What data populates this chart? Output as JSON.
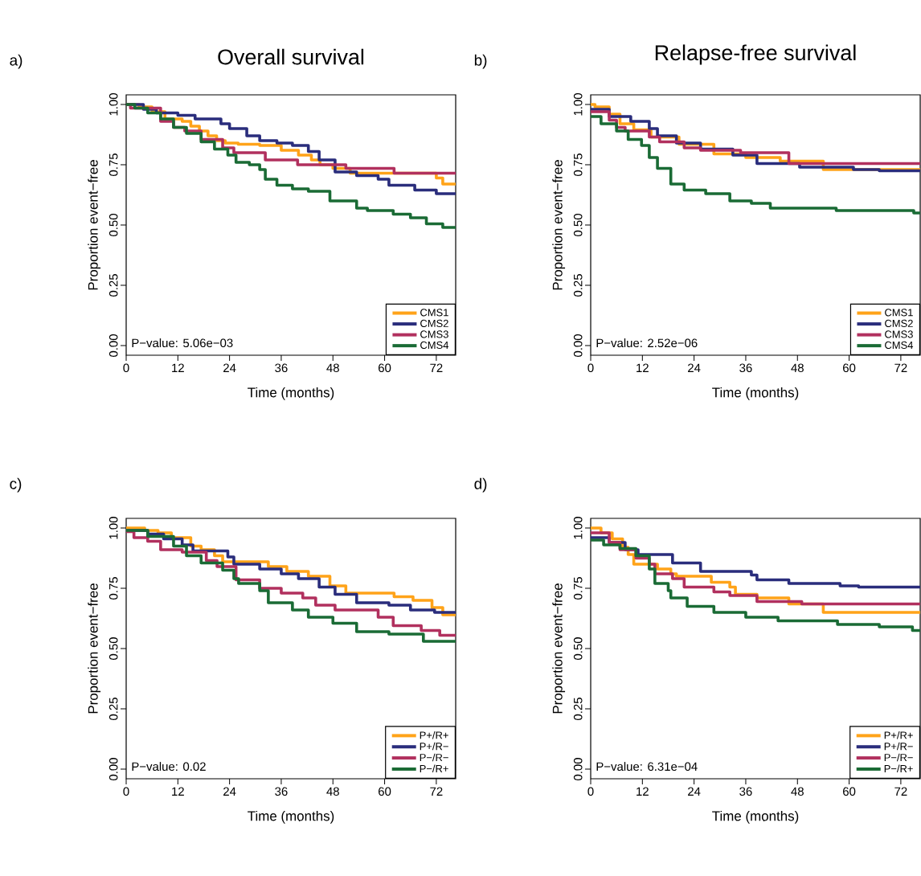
{
  "chart_data": [
    {
      "type": "step",
      "title": "Overall survival",
      "xlabel": "Time (months)",
      "ylabel": "Proportion event−free",
      "annotations": [
        "a)",
        "P−value: 5.06e−03"
      ],
      "xlim": [
        0,
        76.5
      ],
      "ylim": [
        -0.04,
        1.04
      ],
      "xticks": [
        0,
        12,
        24,
        36,
        48,
        60,
        72
      ],
      "yticks": [
        {
          "value": 0,
          "label": "0.00"
        },
        {
          "value": 0.25,
          "label": "0.25"
        },
        {
          "value": 0.5,
          "label": "0.50"
        },
        {
          "value": 0.75,
          "label": "0.75"
        },
        {
          "value": 1,
          "label": "1.00"
        }
      ],
      "legend": "bottom right",
      "series": [
        {
          "name": "CMS1",
          "color": "#ffa319",
          "x": [
            0,
            3,
            6,
            9,
            13,
            15,
            17,
            19,
            21,
            23,
            26,
            31,
            36,
            40,
            43,
            45,
            48,
            52,
            72,
            73.5,
            76.5
          ],
          "values": [
            1,
            0.99,
            0.97,
            0.94,
            0.93,
            0.91,
            0.89,
            0.87,
            0.85,
            0.84,
            0.835,
            0.83,
            0.81,
            0.79,
            0.77,
            0.75,
            0.735,
            0.715,
            0.695,
            0.67,
            0.67
          ]
        },
        {
          "name": "CMS2",
          "color": "#2a2d7c",
          "x": [
            0,
            4,
            7,
            12,
            16,
            22,
            24,
            28,
            31,
            35,
            38.6,
            42.3,
            44.8,
            48.5,
            53.5,
            58.5,
            61,
            67,
            72,
            76.5
          ],
          "values": [
            1,
            0.98,
            0.965,
            0.955,
            0.94,
            0.92,
            0.9,
            0.87,
            0.85,
            0.84,
            0.83,
            0.805,
            0.77,
            0.72,
            0.705,
            0.69,
            0.665,
            0.645,
            0.63,
            0.63
          ]
        },
        {
          "name": "CMS3",
          "color": "#b1305e",
          "x": [
            0,
            1,
            8,
            11,
            13.6,
            17.4,
            22.4,
            25,
            32.3,
            39.8,
            51,
            62.2,
            76.5
          ],
          "values": [
            1,
            0.985,
            0.93,
            0.905,
            0.89,
            0.855,
            0.82,
            0.8,
            0.77,
            0.75,
            0.735,
            0.715,
            0.715
          ]
        },
        {
          "name": "CMS4",
          "color": "#1a6b35",
          "x": [
            0,
            2,
            5,
            8,
            11,
            14,
            17.4,
            20.5,
            23.6,
            25.5,
            28.6,
            31,
            32.3,
            35,
            38.6,
            42.3,
            47.3,
            53.5,
            56,
            62,
            66,
            69.7,
            73.5,
            76.5
          ],
          "values": [
            1,
            0.985,
            0.965,
            0.94,
            0.905,
            0.88,
            0.845,
            0.815,
            0.79,
            0.76,
            0.75,
            0.73,
            0.69,
            0.665,
            0.65,
            0.64,
            0.6,
            0.57,
            0.56,
            0.545,
            0.53,
            0.505,
            0.49,
            0.49
          ]
        }
      ]
    },
    {
      "type": "step",
      "title": "Relapse-free survival",
      "xlabel": "Time (months)",
      "ylabel": "Proportion event−free",
      "annotations": [
        "b)",
        "P−value: 2.52e−06"
      ],
      "xlim": [
        0,
        76.5
      ],
      "ylim": [
        -0.04,
        1.04
      ],
      "xticks": [
        0,
        12,
        24,
        36,
        48,
        60,
        72
      ],
      "yticks": [
        {
          "value": 0,
          "label": "0.00"
        },
        {
          "value": 0.25,
          "label": "0.25"
        },
        {
          "value": 0.5,
          "label": "0.50"
        },
        {
          "value": 0.75,
          "label": "0.75"
        },
        {
          "value": 1,
          "label": "1.00"
        }
      ],
      "legend": "bottom right",
      "series": [
        {
          "name": "CMS1",
          "color": "#ffa319",
          "x": [
            0,
            1,
            4.3,
            6.8,
            10,
            14,
            20.5,
            28.6,
            36,
            44,
            54,
            76.5
          ],
          "values": [
            1,
            0.99,
            0.96,
            0.92,
            0.895,
            0.865,
            0.835,
            0.795,
            0.78,
            0.765,
            0.73,
            0.73
          ]
        },
        {
          "name": "CMS2",
          "color": "#2a2d7c",
          "x": [
            0,
            4.3,
            9.3,
            13.6,
            15.5,
            19.9,
            25.5,
            33,
            38.6,
            48.5,
            61,
            67,
            76.5
          ],
          "values": [
            0.98,
            0.95,
            0.93,
            0.9,
            0.87,
            0.84,
            0.815,
            0.79,
            0.755,
            0.74,
            0.73,
            0.725,
            0.725
          ]
        },
        {
          "name": "CMS3",
          "color": "#b1305e",
          "x": [
            0,
            4.3,
            6,
            8,
            13.6,
            16,
            21.7,
            25.5,
            34.8,
            46,
            76.5
          ],
          "values": [
            0.97,
            0.935,
            0.905,
            0.89,
            0.865,
            0.845,
            0.82,
            0.81,
            0.8,
            0.755,
            0.755
          ]
        },
        {
          "name": "CMS4",
          "color": "#1a6b35",
          "x": [
            0,
            2.4,
            6,
            8.7,
            11.8,
            13.6,
            15.5,
            18.6,
            21.7,
            26.7,
            32.3,
            37.3,
            41.7,
            57,
            75,
            76.5
          ],
          "values": [
            0.95,
            0.92,
            0.89,
            0.855,
            0.83,
            0.78,
            0.735,
            0.67,
            0.645,
            0.63,
            0.6,
            0.59,
            0.57,
            0.56,
            0.55,
            0.55
          ]
        }
      ]
    },
    {
      "type": "step",
      "xlabel": "Time (months)",
      "ylabel": "Proportion event−free",
      "annotations": [
        "c)",
        "P−value: 0.02"
      ],
      "xlim": [
        0,
        76.5
      ],
      "ylim": [
        -0.04,
        1.04
      ],
      "xticks": [
        0,
        12,
        24,
        36,
        48,
        60,
        72
      ],
      "yticks": [
        {
          "value": 0,
          "label": "0.00"
        },
        {
          "value": 0.25,
          "label": "0.25"
        },
        {
          "value": 0.5,
          "label": "0.50"
        },
        {
          "value": 0.75,
          "label": "0.75"
        },
        {
          "value": 1,
          "label": "1.00"
        }
      ],
      "legend": "bottom right",
      "series": [
        {
          "name": "P+/R+",
          "color": "#ffa319",
          "x": [
            0,
            4.3,
            7.4,
            10.5,
            15,
            17.4,
            20.5,
            22.4,
            33,
            37.3,
            42.3,
            47.3,
            51,
            62.2,
            66.6,
            71,
            73.5,
            76.5
          ],
          "values": [
            1,
            0.99,
            0.98,
            0.96,
            0.925,
            0.91,
            0.885,
            0.86,
            0.84,
            0.82,
            0.8,
            0.76,
            0.73,
            0.715,
            0.7,
            0.67,
            0.64,
            0.64
          ]
        },
        {
          "name": "P+/R−",
          "color": "#2a2d7c",
          "x": [
            0,
            5,
            8.7,
            13,
            15.5,
            23.6,
            25,
            31,
            36,
            40,
            44.8,
            48.5,
            53.5,
            61,
            66,
            71.6,
            76.5
          ],
          "values": [
            0.99,
            0.975,
            0.955,
            0.93,
            0.905,
            0.88,
            0.85,
            0.83,
            0.81,
            0.79,
            0.755,
            0.725,
            0.69,
            0.68,
            0.66,
            0.65,
            0.65
          ]
        },
        {
          "name": "P−/R−",
          "color": "#b1305e",
          "x": [
            0,
            1.8,
            5,
            8,
            13,
            18.6,
            21.1,
            25.5,
            31,
            36,
            41,
            44,
            48.5,
            58.5,
            62,
            68.5,
            72.8,
            76.5
          ],
          "values": [
            0.985,
            0.96,
            0.945,
            0.91,
            0.9,
            0.865,
            0.84,
            0.785,
            0.75,
            0.73,
            0.71,
            0.68,
            0.66,
            0.63,
            0.595,
            0.575,
            0.555,
            0.555
          ]
        },
        {
          "name": "P−/R+",
          "color": "#1a6b35",
          "x": [
            0,
            5,
            11,
            14,
            17.4,
            22.4,
            25,
            26.1,
            31,
            33,
            38.6,
            42.3,
            48,
            53.5,
            61,
            69,
            76.5
          ],
          "values": [
            0.99,
            0.965,
            0.925,
            0.885,
            0.855,
            0.825,
            0.79,
            0.77,
            0.74,
            0.69,
            0.66,
            0.63,
            0.605,
            0.57,
            0.56,
            0.53,
            0.53
          ]
        }
      ]
    },
    {
      "type": "step",
      "xlabel": "Time (months)",
      "ylabel": "Proportion event−free",
      "annotations": [
        "d)",
        "P−value: 6.31e−04"
      ],
      "xlim": [
        0,
        76.5
      ],
      "ylim": [
        -0.04,
        1.04
      ],
      "xticks": [
        0,
        12,
        24,
        36,
        48,
        60,
        72
      ],
      "yticks": [
        {
          "value": 0,
          "label": "0.00"
        },
        {
          "value": 0.25,
          "label": "0.25"
        },
        {
          "value": 0.5,
          "label": "0.50"
        },
        {
          "value": 0.75,
          "label": "0.75"
        },
        {
          "value": 1,
          "label": "1.00"
        }
      ],
      "legend": "bottom right",
      "series": [
        {
          "name": "P+/R+",
          "color": "#ffa319",
          "x": [
            0,
            2.4,
            5,
            7.4,
            8.7,
            10,
            15.5,
            18.6,
            19.9,
            28,
            32.3,
            33.6,
            38.6,
            46,
            54,
            76.5
          ],
          "values": [
            1,
            0.98,
            0.955,
            0.92,
            0.89,
            0.85,
            0.83,
            0.81,
            0.8,
            0.775,
            0.755,
            0.725,
            0.71,
            0.685,
            0.65,
            0.65
          ]
        },
        {
          "name": "P+/R−",
          "color": "#2a2d7c",
          "x": [
            0,
            4.3,
            8,
            11,
            19,
            25.5,
            37.3,
            38.6,
            46,
            57.9,
            62.2,
            76.5
          ],
          "values": [
            0.96,
            0.94,
            0.91,
            0.89,
            0.855,
            0.82,
            0.805,
            0.785,
            0.77,
            0.76,
            0.755,
            0.755
          ]
        },
        {
          "name": "P−/R−",
          "color": "#b1305e",
          "x": [
            0,
            4.3,
            6.8,
            10.5,
            13.6,
            14.9,
            19,
            21.7,
            28.6,
            32.3,
            38.6,
            49,
            76.5
          ],
          "values": [
            0.98,
            0.94,
            0.91,
            0.875,
            0.85,
            0.81,
            0.79,
            0.755,
            0.735,
            0.72,
            0.695,
            0.685,
            0.685
          ]
        },
        {
          "name": "P−/R+",
          "color": "#1a6b35",
          "x": [
            0,
            3,
            6.8,
            10.5,
            13.6,
            14.9,
            18,
            18.6,
            22.4,
            28.6,
            36,
            43.5,
            57.3,
            67,
            74.7,
            76.5
          ],
          "values": [
            0.95,
            0.93,
            0.915,
            0.885,
            0.83,
            0.77,
            0.74,
            0.71,
            0.675,
            0.65,
            0.63,
            0.615,
            0.6,
            0.59,
            0.575,
            0.575
          ]
        }
      ]
    }
  ]
}
